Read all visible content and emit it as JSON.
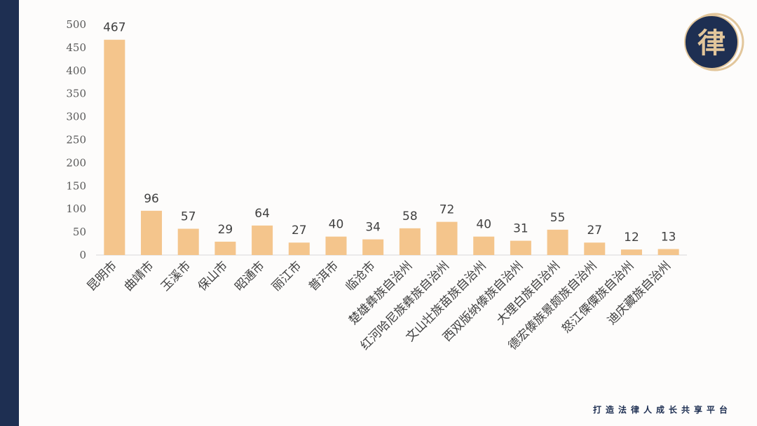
{
  "slogan": "打造法律人成长共享平台",
  "colors": {
    "bar": "#f4c58c",
    "sidebar": "#1e2f52",
    "logo_navy": "#1e2f52",
    "logo_gold": "#e2c69b",
    "axis_text": "#595959",
    "label_text": "#404040",
    "axis_line": "#d9d9d9"
  },
  "logo": {
    "glyph": "律",
    "icon": "law-seal-logo"
  },
  "chart_data": {
    "type": "bar",
    "categories": [
      "昆明市",
      "曲靖市",
      "玉溪市",
      "保山市",
      "昭通市",
      "丽江市",
      "普洱市",
      "临沧市",
      "楚雄彝族自治州",
      "红河哈尼族彝族自治州",
      "文山壮族苗族自治州",
      "西双版纳傣族自治州",
      "大理白族自治州",
      "德宏傣族景颇族自治州",
      "怒江傈僳族自治州",
      "迪庆藏族自治州"
    ],
    "values": [
      467,
      96,
      57,
      29,
      64,
      27,
      40,
      34,
      58,
      72,
      40,
      31,
      55,
      27,
      12,
      13
    ],
    "yticks": [
      0,
      50,
      100,
      150,
      200,
      250,
      300,
      350,
      400,
      450,
      500
    ],
    "ylim": [
      0,
      500
    ],
    "grid": false,
    "legend": "none"
  }
}
